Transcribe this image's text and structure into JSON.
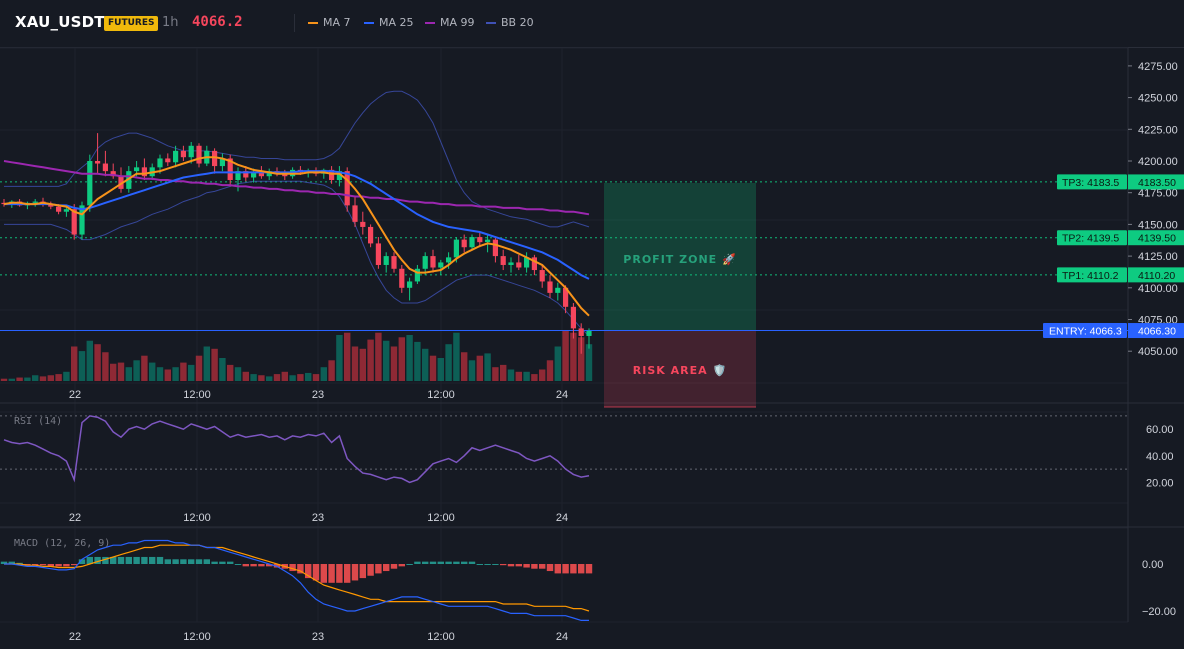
{
  "header": {
    "symbol": "XAU_USDT",
    "badge": "FUTURES",
    "timeframe": "1h",
    "price": "4066.2",
    "legend": [
      {
        "label": "MA 7",
        "color": "#f7931a"
      },
      {
        "label": "MA 25",
        "color": "#2962ff"
      },
      {
        "label": "MA 99",
        "color": "#9c27b0"
      },
      {
        "label": "BB 20",
        "color": "#3f51b5"
      }
    ]
  },
  "colors": {
    "up": "#089981",
    "down": "#f23645",
    "upBright": "#0ecb81",
    "downBright": "#f6465d",
    "entry": "#2962ff",
    "target": "#0ecb81"
  },
  "price_axis": {
    "ticks": [
      "4275.00",
      "4250.00",
      "4225.00",
      "4200.00",
      "4175.00",
      "4150.00",
      "4125.00",
      "4100.00",
      "4075.00",
      "4050.00"
    ],
    "values": [
      4275,
      4250,
      4225,
      4200,
      4175,
      4150,
      4125,
      4100,
      4075,
      4050
    ]
  },
  "time_axis": [
    "22",
    "12:00",
    "23",
    "12:00",
    "24"
  ],
  "levels": [
    {
      "tag": "TP3: 4183.5",
      "value_label": "4183.50",
      "price": 4183.5
    },
    {
      "tag": "TP2: 4139.5",
      "value_label": "4139.50",
      "price": 4139.5
    },
    {
      "tag": "TP1: 4110.2",
      "value_label": "4110.20",
      "price": 4110.2
    }
  ],
  "entry": {
    "tag": "ENTRY: 4066.3",
    "value_label": "4066.30",
    "price": 4066.3
  },
  "zones": {
    "profit": "PROFIT ZONE 🚀",
    "risk": "RISK AREA 🛡️"
  },
  "rsi": {
    "label": "RSI (14)",
    "ticks": [
      "60.00",
      "40.00",
      "20.00"
    ],
    "tick_values": [
      60,
      40,
      20
    ],
    "bands": [
      70,
      30
    ]
  },
  "macd": {
    "label": "MACD (12, 26, 9)",
    "ticks": [
      "0.00",
      "−20.00"
    ],
    "tick_values": [
      0,
      -20
    ]
  },
  "chart_data": {
    "type": "candlestick",
    "ohlc": [
      [
        4167,
        4170,
        4164,
        4166
      ],
      [
        4166,
        4169,
        4163,
        4168
      ],
      [
        4168,
        4170,
        4164,
        4165
      ],
      [
        4165,
        4168,
        4162,
        4167
      ],
      [
        4167,
        4170,
        4164,
        4168
      ],
      [
        4168,
        4171,
        4164,
        4166
      ],
      [
        4166,
        4168,
        4162,
        4164
      ],
      [
        4164,
        4166,
        4158,
        4160
      ],
      [
        4160,
        4165,
        4156,
        4162
      ],
      [
        4162,
        4166,
        4138,
        4142
      ],
      [
        4142,
        4168,
        4138,
        4165
      ],
      [
        4165,
        4205,
        4160,
        4200
      ],
      [
        4200,
        4222,
        4190,
        4198
      ],
      [
        4198,
        4208,
        4188,
        4192
      ],
      [
        4192,
        4198,
        4186,
        4188
      ],
      [
        4188,
        4195,
        4175,
        4178
      ],
      [
        4178,
        4196,
        4175,
        4192
      ],
      [
        4192,
        4200,
        4188,
        4195
      ],
      [
        4195,
        4202,
        4185,
        4188
      ],
      [
        4188,
        4198,
        4185,
        4195
      ],
      [
        4195,
        4205,
        4190,
        4202
      ],
      [
        4202,
        4206,
        4196,
        4199
      ],
      [
        4199,
        4212,
        4195,
        4208
      ],
      [
        4208,
        4212,
        4200,
        4203
      ],
      [
        4203,
        4215,
        4198,
        4212
      ],
      [
        4212,
        4214,
        4195,
        4198
      ],
      [
        4198,
        4212,
        4196,
        4208
      ],
      [
        4208,
        4210,
        4190,
        4196
      ],
      [
        4196,
        4206,
        4192,
        4202
      ],
      [
        4202,
        4205,
        4180,
        4185
      ],
      [
        4185,
        4195,
        4176,
        4192
      ],
      [
        4192,
        4196,
        4184,
        4187
      ],
      [
        4187,
        4194,
        4183,
        4191
      ],
      [
        4191,
        4196,
        4186,
        4188
      ],
      [
        4188,
        4194,
        4185,
        4192
      ],
      [
        4192,
        4195,
        4188,
        4190
      ],
      [
        4190,
        4193,
        4185,
        4188
      ],
      [
        4188,
        4195,
        4186,
        4193
      ],
      [
        4193,
        4196,
        4189,
        4191
      ],
      [
        4191,
        4194,
        4187,
        4192
      ],
      [
        4192,
        4195,
        4188,
        4190
      ],
      [
        4190,
        4194,
        4186,
        4193
      ],
      [
        4193,
        4196,
        4182,
        4185
      ],
      [
        4185,
        4196,
        4180,
        4192
      ],
      [
        4192,
        4195,
        4160,
        4165
      ],
      [
        4165,
        4172,
        4148,
        4152
      ],
      [
        4152,
        4160,
        4142,
        4148
      ],
      [
        4148,
        4150,
        4132,
        4135
      ],
      [
        4135,
        4140,
        4115,
        4118
      ],
      [
        4118,
        4128,
        4112,
        4125
      ],
      [
        4125,
        4128,
        4112,
        4115
      ],
      [
        4115,
        4118,
        4096,
        4100
      ],
      [
        4100,
        4108,
        4090,
        4105
      ],
      [
        4105,
        4118,
        4103,
        4115
      ],
      [
        4115,
        4128,
        4110,
        4125
      ],
      [
        4125,
        4130,
        4112,
        4116
      ],
      [
        4116,
        4122,
        4110,
        4120
      ],
      [
        4120,
        4128,
        4115,
        4124
      ],
      [
        4124,
        4140,
        4120,
        4138
      ],
      [
        4138,
        4142,
        4128,
        4132
      ],
      [
        4132,
        4142,
        4130,
        4140
      ],
      [
        4140,
        4144,
        4132,
        4136
      ],
      [
        4136,
        4142,
        4128,
        4138
      ],
      [
        4138,
        4140,
        4120,
        4125
      ],
      [
        4125,
        4130,
        4114,
        4118
      ],
      [
        4118,
        4124,
        4112,
        4120
      ],
      [
        4120,
        4126,
        4114,
        4116
      ],
      [
        4116,
        4128,
        4112,
        4124
      ],
      [
        4124,
        4126,
        4110,
        4114
      ],
      [
        4114,
        4118,
        4100,
        4105
      ],
      [
        4105,
        4110,
        4092,
        4096
      ],
      [
        4096,
        4104,
        4090,
        4100
      ],
      [
        4100,
        4102,
        4080,
        4085
      ],
      [
        4085,
        4088,
        4060,
        4068
      ],
      [
        4068,
        4072,
        4048,
        4062
      ],
      [
        4062,
        4068,
        4052,
        4066
      ]
    ],
    "volume": [
      2,
      2,
      3,
      3,
      5,
      4,
      5,
      6,
      8,
      30,
      26,
      35,
      32,
      25,
      15,
      16,
      12,
      18,
      22,
      16,
      12,
      10,
      12,
      16,
      14,
      22,
      30,
      28,
      20,
      14,
      12,
      8,
      6,
      5,
      4,
      6,
      8,
      5,
      6,
      7,
      6,
      12,
      18,
      40,
      42,
      30,
      28,
      36,
      42,
      35,
      30,
      38,
      40,
      34,
      28,
      22,
      20,
      32,
      42,
      25,
      18,
      22,
      24,
      12,
      14,
      10,
      8,
      8,
      6,
      10,
      18,
      30,
      44,
      42,
      38,
      32
    ],
    "ma7": [
      4166,
      4167,
      4167,
      4166,
      4166,
      4167,
      4166,
      4165,
      4164,
      4160,
      4158,
      4164,
      4170,
      4174,
      4178,
      4182,
      4186,
      4190,
      4190,
      4191,
      4192,
      4194,
      4196,
      4198,
      4200,
      4202,
      4203,
      4203,
      4202,
      4200,
      4197,
      4195,
      4193,
      4192,
      4191,
      4190,
      4190,
      4190,
      4190,
      4191,
      4191,
      4191,
      4190,
      4190,
      4185,
      4178,
      4170,
      4160,
      4150,
      4140,
      4130,
      4122,
      4115,
      4112,
      4112,
      4113,
      4114,
      4118,
      4123,
      4127,
      4130,
      4133,
      4135,
      4134,
      4132,
      4130,
      4127,
      4124,
      4121,
      4118,
      4112,
      4106,
      4100,
      4092,
      4084,
      4078
    ],
    "ma25": [
      4166,
      4166,
      4166,
      4166,
      4166,
      4166,
      4166,
      4165,
      4165,
      4163,
      4162,
      4163,
      4165,
      4167,
      4169,
      4171,
      4173,
      4175,
      4177,
      4179,
      4181,
      4183,
      4185,
      4187,
      4188,
      4189,
      4190,
      4191,
      4191,
      4191,
      4191,
      4191,
      4191,
      4191,
      4191,
      4191,
      4191,
      4191,
      4192,
      4192,
      4192,
      4192,
      4192,
      4191,
      4190,
      4188,
      4185,
      4182,
      4178,
      4174,
      4170,
      4166,
      4162,
      4158,
      4155,
      4152,
      4150,
      4148,
      4147,
      4146,
      4145,
      4144,
      4142,
      4140,
      4138,
      4136,
      4134,
      4132,
      4130,
      4128,
      4125,
      4122,
      4118,
      4114,
      4110,
      4107
    ],
    "ma99": [
      4200,
      4199,
      4198,
      4197,
      4196,
      4195,
      4194,
      4193,
      4192,
      4191,
      4190,
      4190,
      4190,
      4189,
      4189,
      4188,
      4188,
      4187,
      4186,
      4186,
      4185,
      4185,
      4184,
      4184,
      4183,
      4183,
      4182,
      4182,
      4181,
      4181,
      4180,
      4180,
      4179,
      4179,
      4178,
      4178,
      4177,
      4177,
      4176,
      4176,
      4175,
      4175,
      4174,
      4174,
      4173,
      4172,
      4172,
      4171,
      4171,
      4170,
      4170,
      4169,
      4168,
      4168,
      4167,
      4167,
      4166,
      4166,
      4165,
      4165,
      4165,
      4164,
      4164,
      4164,
      4163,
      4163,
      4163,
      4162,
      4162,
      4162,
      4161,
      4161,
      4160,
      4160,
      4159,
      4158
    ],
    "bb_upper": [
      4180,
      4180,
      4180,
      4180,
      4180,
      4180,
      4180,
      4180,
      4182,
      4190,
      4195,
      4200,
      4210,
      4215,
      4218,
      4220,
      4222,
      4222,
      4220,
      4218,
      4215,
      4212,
      4210,
      4208,
      4208,
      4208,
      4208,
      4207,
      4206,
      4205,
      4204,
      4203,
      4203,
      4202,
      4202,
      4202,
      4201,
      4201,
      4201,
      4201,
      4201,
      4202,
      4205,
      4210,
      4220,
      4230,
      4238,
      4245,
      4250,
      4254,
      4255,
      4255,
      4252,
      4248,
      4240,
      4230,
      4215,
      4200,
      4185,
      4175,
      4168,
      4165,
      4162,
      4160,
      4158,
      4156,
      4155,
      4154,
      4152,
      4150,
      4148,
      4148,
      4150,
      4152,
      4150,
      4148
    ],
    "bb_lower": [
      4150,
      4150,
      4150,
      4150,
      4150,
      4150,
      4150,
      4148,
      4146,
      4142,
      4138,
      4138,
      4140,
      4142,
      4145,
      4148,
      4150,
      4152,
      4155,
      4158,
      4160,
      4162,
      4165,
      4168,
      4170,
      4172,
      4175,
      4176,
      4178,
      4180,
      4182,
      4183,
      4184,
      4184,
      4184,
      4184,
      4184,
      4184,
      4184,
      4183,
      4182,
      4181,
      4178,
      4172,
      4162,
      4150,
      4135,
      4120,
      4108,
      4098,
      4092,
      4088,
      4088,
      4088,
      4090,
      4094,
      4098,
      4102,
      4106,
      4108,
      4110,
      4110,
      4110,
      4108,
      4106,
      4104,
      4102,
      4100,
      4098,
      4095,
      4092,
      4088,
      4082,
      4075,
      4068,
      4062
    ],
    "rsi": [
      52,
      50,
      49,
      50,
      48,
      45,
      42,
      40,
      36,
      22,
      65,
      70,
      69,
      66,
      58,
      54,
      60,
      62,
      60,
      64,
      66,
      64,
      62,
      60,
      64,
      62,
      60,
      62,
      58,
      54,
      56,
      54,
      55,
      56,
      54,
      55,
      52,
      55,
      54,
      56,
      55,
      57,
      50,
      55,
      38,
      32,
      27,
      26,
      24,
      22,
      24,
      23,
      20,
      22,
      28,
      34,
      36,
      38,
      35,
      40,
      46,
      44,
      46,
      48,
      46,
      44,
      42,
      38,
      36,
      38,
      40,
      36,
      30,
      26,
      24,
      25
    ],
    "macd": [
      0,
      0,
      -0.5,
      -1,
      -1,
      -1.5,
      -2,
      -2.5,
      -2.5,
      -2,
      2,
      4,
      6,
      7,
      8,
      8,
      9,
      9,
      10,
      10,
      10,
      10,
      9,
      9,
      8,
      8,
      7,
      7,
      6,
      5,
      4,
      3,
      2,
      1,
      0,
      -1,
      -3,
      -5,
      -8,
      -12,
      -15,
      -17,
      -18,
      -19,
      -20,
      -20,
      -19,
      -18,
      -17,
      -16,
      -15,
      -14,
      -14,
      -14,
      -15,
      -16,
      -17,
      -18,
      -18,
      -18,
      -18,
      -18,
      -18,
      -19,
      -20,
      -21,
      -21,
      -21,
      -22,
      -22,
      -22,
      -22,
      -22,
      -23,
      -24,
      -24
    ],
    "signal": [
      0,
      0,
      0,
      -0.5,
      -0.5,
      -1,
      -1,
      -1.5,
      -1.5,
      -1.5,
      -1,
      0,
      1,
      2,
      3,
      4,
      5,
      6,
      7,
      7,
      8,
      8,
      8,
      8,
      8,
      8,
      7,
      7,
      7,
      6,
      5,
      4,
      3,
      2,
      1,
      0,
      -1,
      -2,
      -3,
      -5,
      -7,
      -9,
      -10,
      -11,
      -12,
      -13,
      -14,
      -15,
      -15,
      -16,
      -16,
      -16,
      -16,
      -16,
      -16,
      -16,
      -16,
      -16,
      -16,
      -16,
      -16,
      -16,
      -16,
      -16,
      -17,
      -17,
      -17,
      -17,
      -18,
      -18,
      -18,
      -18,
      -18,
      -19,
      -19,
      -20
    ],
    "hist": [
      1,
      1,
      0.5,
      -0.5,
      -0.5,
      -0.5,
      -1,
      -1,
      -1,
      -0.5,
      2,
      3,
      3,
      3,
      3,
      3,
      3,
      3,
      3,
      3,
      3,
      2,
      2,
      2,
      2,
      2,
      2,
      1,
      1,
      1,
      0,
      -1,
      -1,
      -1,
      -1,
      -1.5,
      -2,
      -3,
      -4,
      -6,
      -7,
      -8,
      -8,
      -8,
      -8,
      -7,
      -6,
      -5,
      -4,
      -3,
      -2,
      -1,
      0,
      1,
      1,
      1,
      1,
      1,
      1,
      1,
      1,
      0,
      0,
      0,
      -0.5,
      -1,
      -1,
      -1.5,
      -2,
      -2,
      -3,
      -4,
      -4,
      -4,
      -4,
      -4
    ]
  }
}
